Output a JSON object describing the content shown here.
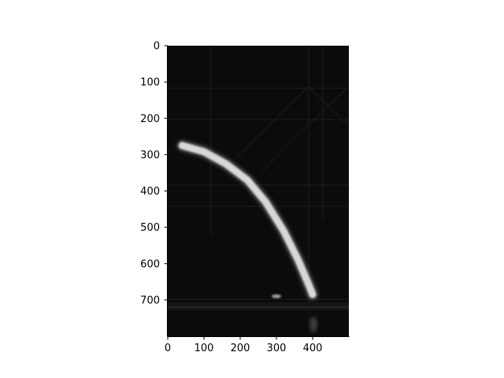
{
  "chart_data": {
    "type": "image",
    "title": "",
    "xlabel": "",
    "ylabel": "",
    "xlim": [
      0,
      500
    ],
    "ylim": [
      800,
      0
    ],
    "x_ticks": [
      0,
      100,
      200,
      300,
      400
    ],
    "y_ticks": [
      0,
      100,
      200,
      300,
      400,
      500,
      600,
      700
    ],
    "grid": false,
    "colormap": "gray",
    "image_description_values": {
      "streak_path": [
        [
          40,
          275
        ],
        [
          100,
          292
        ],
        [
          160,
          325
        ],
        [
          220,
          370
        ],
        [
          270,
          430
        ],
        [
          320,
          510
        ],
        [
          360,
          590
        ],
        [
          390,
          660
        ],
        [
          400,
          685
        ]
      ],
      "horizontal_band_y": 713,
      "small_blob": [
        300,
        690
      ]
    }
  },
  "colors": {
    "background": "#ffffff",
    "image_base": "#0b0b0b",
    "streak": "#d8d8d8",
    "axis": "#000000"
  }
}
